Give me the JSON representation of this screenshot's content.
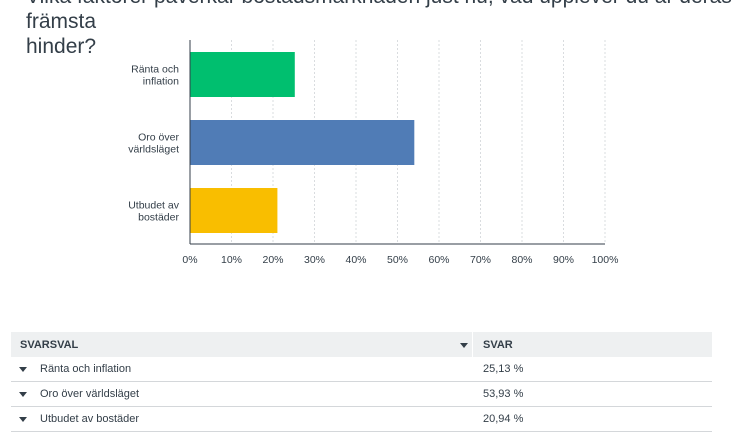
{
  "question": "Vilka faktorer påverkar bostadsmarknaden just nu, vad upplever du är deras främsta\nhinder?",
  "chart_data": {
    "type": "bar",
    "orientation": "horizontal",
    "categories": [
      "Ränta och\ninflation",
      "Oro över\nvärldsläget",
      "Utbudet av\nbostäder"
    ],
    "values": [
      25.13,
      53.93,
      20.94
    ],
    "colors": [
      "#00bf6f",
      "#507cb6",
      "#f9be00"
    ],
    "xlim": [
      0,
      100
    ],
    "ticks": [
      0,
      10,
      20,
      30,
      40,
      50,
      60,
      70,
      80,
      90,
      100
    ],
    "tick_labels": [
      "0%",
      "10%",
      "20%",
      "30%",
      "40%",
      "50%",
      "60%",
      "70%",
      "80%",
      "90%",
      "100%"
    ],
    "grid": true
  },
  "table": {
    "col_choice": "SVARSVAL",
    "col_answer": "SVAR",
    "rows": [
      {
        "label": "Ränta och inflation",
        "value": "25,13 %"
      },
      {
        "label": "Oro över världsläget",
        "value": "53,93 %"
      },
      {
        "label": "Utbudet av bostäder",
        "value": "20,94 %"
      }
    ]
  }
}
